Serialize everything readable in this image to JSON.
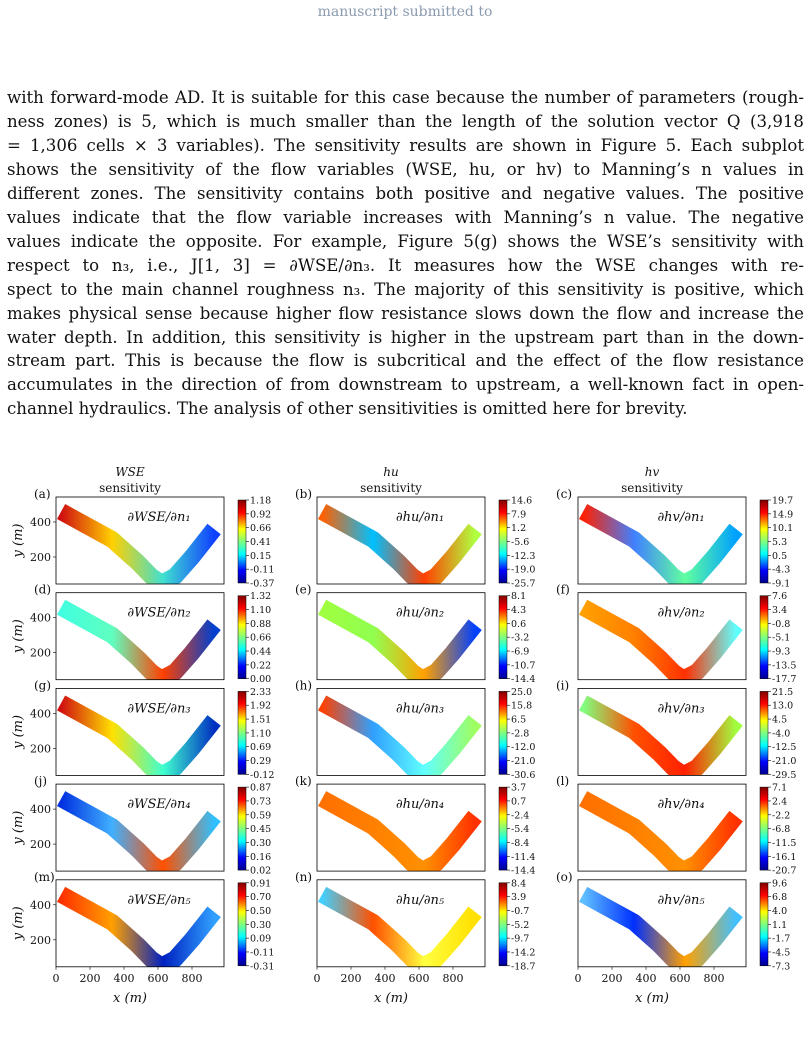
{
  "header": "manuscript submitted to",
  "paragraph_lines": [
    "with forward-mode AD. It is suitable for this case because the number of parameters (rough-",
    "ness zones) is 5, which is much smaller than the length of the solution vector Q (3,918",
    "= 1,306 cells × 3 variables). The sensitivity results are shown in Figure 5. Each subplot",
    "shows the sensitivity of the flow variables (WSE, hu, or hv) to Manning’s n values in",
    "different zones. The sensitivity contains both positive and negative values. The positive",
    "values indicate that the flow variable increases with Manning’s n value. The negative",
    "values indicate the opposite. For example, Figure 5(g) shows the WSE’s sensitivity with",
    "respect to n₃, i.e., J[1, 3] = ∂WSE/∂n₃. It measures how the WSE changes with re-",
    "spect to the main channel roughness n₃. The majority of this sensitivity is positive, which",
    "makes physical sense because higher flow resistance slows down the flow and increase the",
    "water depth. In addition, this sensitivity is higher in the upstream part than in the down-",
    "stream part. This is because the flow is subcritical and the effect of the flow resistance",
    "accumulates in the direction of from downstream to upstream, a well-known fact in open-",
    "channel hydraulics. The analysis of other sensitivities is omitted here for brevity."
  ],
  "figure": {
    "columns": [
      {
        "title": [
          "WSE",
          "sensitivity"
        ]
      },
      {
        "title": [
          "hu",
          "sensitivity"
        ]
      },
      {
        "title": [
          "hv",
          "sensitivity"
        ]
      }
    ],
    "panels": [
      {
        "label": "(a)",
        "expression": "∂WSE/∂n₁",
        "colorbar": [
          "1.18",
          "0.92",
          "0.66",
          "0.41",
          "0.15",
          "-0.11",
          "-0.37"
        ]
      },
      {
        "label": "(b)",
        "expression": "∂hu/∂n₁",
        "colorbar": [
          "14.6",
          "7.9",
          "1.2",
          "-5.6",
          "-12.3",
          "-19.0",
          "-25.7"
        ]
      },
      {
        "label": "(c)",
        "expression": "∂hv/∂n₁",
        "colorbar": [
          "19.7",
          "14.9",
          "10.1",
          "5.3",
          "0.5",
          "-4.3",
          "-9.1"
        ]
      },
      {
        "label": "(d)",
        "expression": "∂WSE/∂n₂",
        "colorbar": [
          "1.32",
          "1.10",
          "0.88",
          "0.66",
          "0.44",
          "0.22",
          "0.00"
        ]
      },
      {
        "label": "(e)",
        "expression": "∂hu/∂n₂",
        "colorbar": [
          "8.1",
          "4.3",
          "0.6",
          "-3.2",
          "-6.9",
          "-10.7",
          "-14.4"
        ]
      },
      {
        "label": "(f)",
        "expression": "∂hv/∂n₂",
        "colorbar": [
          "7.6",
          "3.4",
          "-0.8",
          "-5.1",
          "-9.3",
          "-13.5",
          "-17.7"
        ]
      },
      {
        "label": "(g)",
        "expression": "∂WSE/∂n₃",
        "colorbar": [
          "2.33",
          "1.92",
          "1.51",
          "1.10",
          "0.69",
          "0.29",
          "-0.12"
        ]
      },
      {
        "label": "(h)",
        "expression": "∂hu/∂n₃",
        "colorbar": [
          "25.0",
          "15.8",
          "6.5",
          "-2.8",
          "-12.0",
          "-21.0",
          "-30.6"
        ]
      },
      {
        "label": "(i)",
        "expression": "∂hv/∂n₃",
        "colorbar": [
          "21.5",
          "13.0",
          "4.5",
          "-4.0",
          "-12.5",
          "-21.0",
          "-29.5"
        ]
      },
      {
        "label": "(j)",
        "expression": "∂WSE/∂n₄",
        "colorbar": [
          "0.87",
          "0.73",
          "0.59",
          "0.45",
          "0.30",
          "0.16",
          "0.02"
        ]
      },
      {
        "label": "(k)",
        "expression": "∂hu/∂n₄",
        "colorbar": [
          "3.7",
          "0.7",
          "-2.4",
          "-5.4",
          "-8.4",
          "-11.4",
          "-14.4"
        ]
      },
      {
        "label": "(l)",
        "expression": "∂hv/∂n₄",
        "colorbar": [
          "7.1",
          "2.4",
          "-2.2",
          "-6.8",
          "-11.5",
          "-16.1",
          "-20.7"
        ]
      },
      {
        "label": "(m)",
        "expression": "∂WSE/∂n₅",
        "colorbar": [
          "0.91",
          "0.70",
          "0.50",
          "0.30",
          "0.09",
          "-0.11",
          "-0.31"
        ]
      },
      {
        "label": "(n)",
        "expression": "∂hu/∂n₅",
        "colorbar": [
          "8.4",
          "3.9",
          "-0.7",
          "-5.2",
          "-9.7",
          "-14.2",
          "-18.7"
        ]
      },
      {
        "label": "(o)",
        "expression": "∂hv/∂n₅",
        "colorbar": [
          "9.6",
          "6.8",
          "4.0",
          "1.1",
          "-1.7",
          "-4.5",
          "-7.3"
        ]
      }
    ],
    "y_axis": {
      "label": "y (m)",
      "ticks": [
        "400",
        "200"
      ]
    },
    "x_axis": {
      "label": "x (m)",
      "ticks": [
        "0",
        "200",
        "400",
        "600",
        "800"
      ]
    }
  }
}
